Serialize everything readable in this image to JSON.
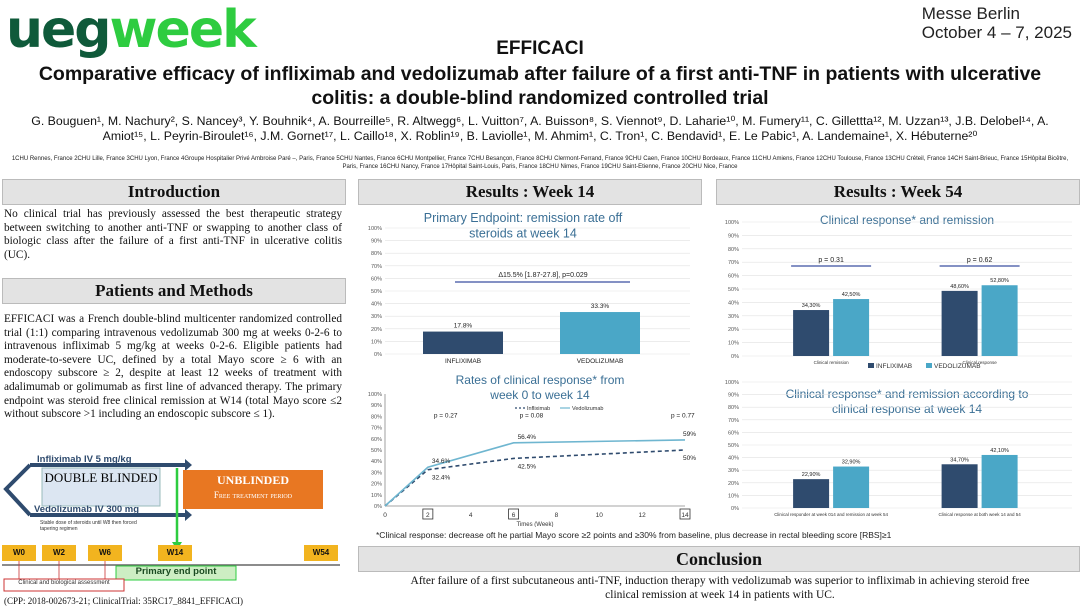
{
  "header": {
    "logo_part1": "ueg",
    "logo_part2": "week",
    "venue_line1": "Messe Berlin",
    "venue_line2": "October 4 – 7, 2025",
    "title": "EFFICACI",
    "subtitle": "Comparative efficacy of infliximab and vedolizumab after failure of a first anti-TNF in patients with ulcerative colitis: a double-blind randomized controlled trial",
    "authors": "G. Bouguen¹, M. Nachury², S. Nancey³, Y. Bouhnik⁴, A. Bourreille⁵, R. Altwegg⁶, L. Vuitton⁷, A. Buisson⁸, S. Viennot⁹, D. Laharie¹⁰, M. Fumery¹¹, C. Gillettta¹², M. Uzzan¹³, J.B. Delobel¹⁴, A. Amiot¹⁵, L. Peyrin-Biroulet¹⁶, J.M. Gornet¹⁷, L. Caillo¹⁸, X. Roblin¹⁹, B. Laviolle¹, M. Ahmim¹, C. Tron¹, C. Bendavid¹, E. Le Pabic¹, A. Landemaine¹, X. Hébuterne²⁰",
    "affiliations": "1CHU Rennes, France 2CHU Lille, France 3CHU Lyon, France 4Groupe Hospitalier Privé Ambroise Paré –, Paris, France 5CHU Nantes, France 6CHU Montpellier, France 7CHU Besançon, France 8CHU Clermont-Ferrand, France 9CHU Caen, France 10CHU Bordeaux, France 11CHU Amiens, France 12CHU Toulouse, France 13CHU Créteil, France 14CH Saint-Brieuc, France 15Hôpital Bicêtre, Paris, France 16CHU Nancy, France 17Hôpital Saint-Louis, Paris, France 18CHU Nimes, France 19CHU Saint-Etienne, France 20CHU Nice, France"
  },
  "intro": {
    "heading": "Introduction",
    "text": "No clinical trial has previously assessed the best therapeutic strategy between switching to another anti-TNF or swapping to another class of biologic class after the failure of a first anti-TNF in ulcerative colitis (UC)."
  },
  "methods": {
    "heading": "Patients and Methods",
    "text": "EFFICACI was a French double-blind multicenter randomized controlled trial (1:1) comparing intravenous vedolizumab 300 mg at weeks 0-2-6 to intravenous infliximab 5 mg/kg at weeks 0-2-6. Eligible patients had moderate-to-severe UC, defined by a total Mayo score ≥ 6 with an endoscopy subscore ≥ 2, despite at least 12 weeks of treatment with adalimumab or golimumab as first line of advanced therapy. The primary endpoint was steroid free clinical remission at W14 (total Mayo score ≤2 without subscore >1 including an endoscopic subscore ≤ 1)."
  },
  "design": {
    "ifx_label": "Infliximab IV 5 mg/kg",
    "vdz_label": "Vedolizumab IV 300 mg",
    "double_blinded": "DOUBLE BLINDED",
    "unblinded": "UNBLINDED",
    "free_period": "Free treatment period",
    "steroid_note": "Stable dose of steroids until W8 then forced tapering regimen",
    "weeks": [
      "W0",
      "W2",
      "W6",
      "W14",
      "W54"
    ],
    "primary_end_point": "Primary end point",
    "assessment": "Clinical and biological assessment",
    "registration": "(CPP: 2018-002673-21; ClinicalTrial: 35RC17_8841_EFFICACI)"
  },
  "results14": {
    "heading": "Results : Week 14"
  },
  "results54": {
    "heading": "Results : Week 54"
  },
  "conclusion": {
    "heading": "Conclusion",
    "text": "After failure of a first subcutaneous anti-TNF, induction therapy with vedolizumab was superior to infliximab in achieving steroid free clinical remission at week 14 in patients with UC."
  },
  "footnote": "*Clinical response: decrease oft he partial Mayo score ≥2 points and ≥30% from baseline, plus decrease in rectal bleeding score [RBS]≥1",
  "colors": {
    "ifx": "#2f4b6e",
    "vdz": "#4aa7c7",
    "accent": "#3a6f95"
  },
  "chart_data": [
    {
      "type": "bar",
      "title": "Primary Endpoint: remission rate off steroids at week 14",
      "categories": [
        "INFLIXIMAB",
        "VEDOLIZUMAB"
      ],
      "values": [
        17.8,
        33.3
      ],
      "value_labels": [
        "17.8%",
        "33.3%"
      ],
      "annotation": "Δ15.5% [1.87-27.8], p=0.029",
      "ylim": [
        0,
        100
      ],
      "yticks": [
        "0%",
        "10%",
        "20%",
        "30%",
        "40%",
        "50%",
        "60%",
        "70%",
        "80%",
        "90%",
        "100%"
      ]
    },
    {
      "type": "line",
      "title": "Rates of clinical response* from week 0 to week 14",
      "xlabel": "Times (Week)",
      "xticks": [
        "0",
        "2",
        "4",
        "6",
        "8",
        "10",
        "12",
        "14"
      ],
      "boxed_xticks": [
        "2",
        "6",
        "14"
      ],
      "yticks": [
        "0%",
        "10%",
        "20%",
        "30%",
        "40%",
        "50%",
        "60%",
        "70%",
        "80%",
        "90%",
        "100%"
      ],
      "ylim": [
        0,
        100
      ],
      "legend": [
        "Infliximab",
        "Vedolizumab"
      ],
      "series": [
        {
          "name": "Infliximab",
          "x": [
            0,
            2,
            6,
            14
          ],
          "values": [
            0,
            32.4,
            42.5,
            50
          ],
          "labels": [
            "",
            "32.4%",
            "42.5%",
            "50%"
          ]
        },
        {
          "name": "Vedolizumab",
          "x": [
            0,
            2,
            6,
            14
          ],
          "values": [
            0,
            34.6,
            56.4,
            59
          ],
          "labels": [
            "",
            "34.6%",
            "56.4%",
            "59%"
          ]
        }
      ],
      "pvalues": [
        "p = 0.27",
        "p = 0.08",
        "p = 0.77"
      ]
    },
    {
      "type": "bar",
      "title": "Clinical response* and remission",
      "categories": [
        "Clinical remission",
        "Clinical response"
      ],
      "series": [
        {
          "name": "INFLIXIMAB",
          "values": [
            34.3,
            48.6
          ],
          "labels": [
            "34,30%",
            "48,60%"
          ]
        },
        {
          "name": "VEDOLIZUMAB",
          "values": [
            42.5,
            52.8
          ],
          "labels": [
            "42,50%",
            "52,80%"
          ]
        }
      ],
      "pvalues": [
        "p = 0.31",
        "p = 0.62"
      ],
      "ylim": [
        0,
        100
      ],
      "yticks": [
        "0%",
        "10%",
        "20%",
        "30%",
        "40%",
        "50%",
        "60%",
        "70%",
        "80%",
        "90%",
        "100%"
      ]
    },
    {
      "type": "bar",
      "title": "Clinical response* and remission according to clinical response at week 14",
      "categories": [
        "Clinical responder at week 014 and remission at week 54",
        "Clinical response at both week 14 and 54"
      ],
      "series": [
        {
          "name": "INFLIXIMAB",
          "values": [
            22.9,
            34.7
          ],
          "labels": [
            "22,90%",
            "34,70%"
          ]
        },
        {
          "name": "VEDOLIZUMAB",
          "values": [
            32.9,
            42.1
          ],
          "labels": [
            "32,90%",
            "42,10%"
          ]
        }
      ],
      "ylim": [
        0,
        100
      ],
      "yticks": [
        "0%",
        "10%",
        "20%",
        "30%",
        "40%",
        "50%",
        "60%",
        "70%",
        "80%",
        "90%",
        "100%"
      ]
    }
  ]
}
